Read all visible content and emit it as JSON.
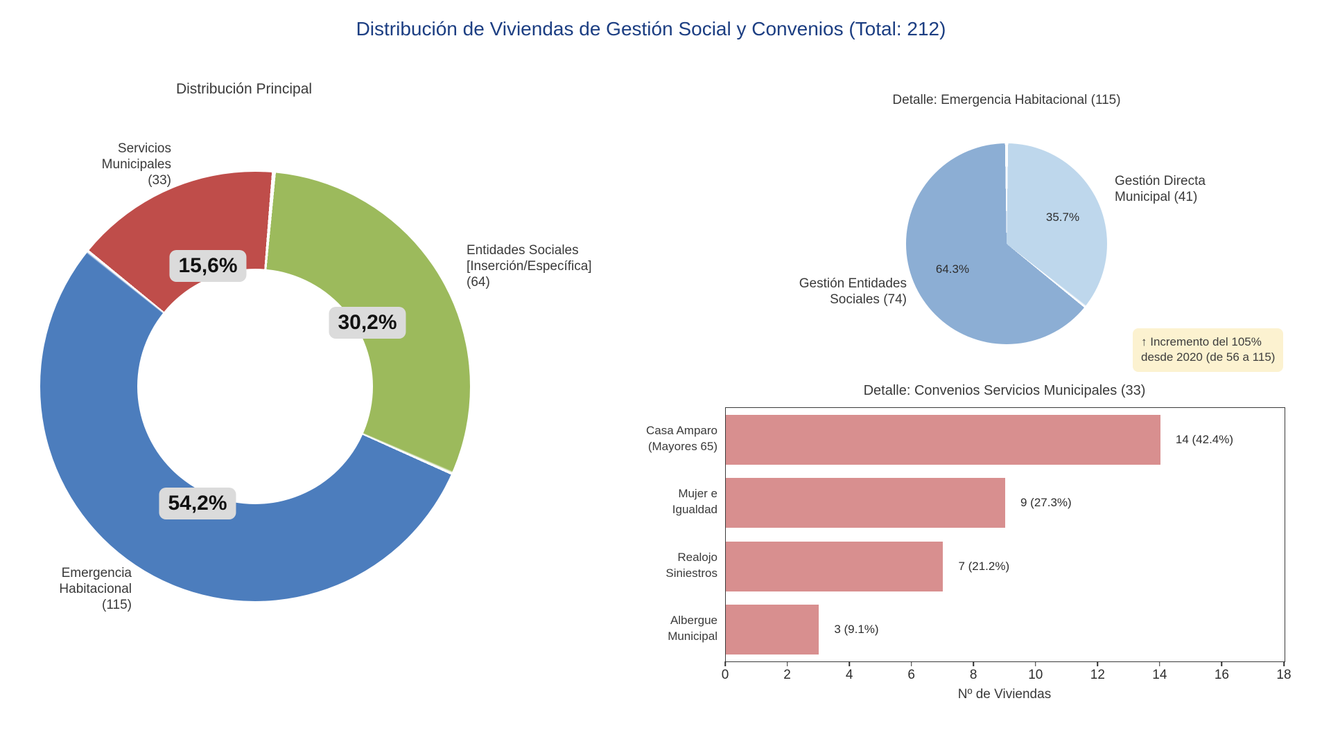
{
  "page_title": "Distribución de Viviendas de Gestión Social y Convenios (Total: 212)",
  "total": 212,
  "colors": {
    "title_blue": "#1c3e82",
    "donut_green": "#9cba5c",
    "donut_blue": "#4c7dbd",
    "donut_red": "#bf4d4a",
    "pie_light_blue": "#bed7ec",
    "pie_blue": "#8caed4",
    "bar_salmon": "#d88f8f",
    "pct_pill_bg": "#dbdbdb",
    "annotation_bg": "#fcf2d0"
  },
  "chart_data": [
    {
      "id": "distribucion-principal",
      "type": "pie",
      "donut": true,
      "title": "Distribución Principal",
      "start_angle_deg": 5,
      "slices": [
        {
          "name": "entidades-sociales",
          "label": "Entidades Sociales\n[Inserción/Específica]\n(64)",
          "count": 64,
          "pct": 30.2,
          "pct_label": "30,2%",
          "color": "#9cba5c"
        },
        {
          "name": "emergencia-habitacional",
          "label": "Emergencia\nHabitacional\n(115)",
          "count": 115,
          "pct": 54.2,
          "pct_label": "54,2%",
          "color": "#4c7dbd"
        },
        {
          "name": "servicios-municipales",
          "label": "Servicios\nMunicipales\n(33)",
          "count": 33,
          "pct": 15.6,
          "pct_label": "15,6%",
          "color": "#bf4d4a"
        }
      ]
    },
    {
      "id": "detalle-emergencia",
      "type": "pie",
      "donut": false,
      "title": "Detalle: Emergencia Habitacional (115)",
      "start_angle_deg": 0,
      "slices": [
        {
          "name": "gestion-directa-municipal",
          "label": "Gestión Directa\nMunicipal (41)",
          "count": 41,
          "pct": 35.7,
          "pct_label": "35.7%",
          "color": "#bed7ec"
        },
        {
          "name": "gestion-entidades-sociales",
          "label": "Gestión Entidades\nSociales (74)",
          "count": 74,
          "pct": 64.3,
          "pct_label": "64.3%",
          "color": "#8caed4"
        }
      ],
      "annotation": "↑ Incremento del 105%\ndesde 2020 (de 56 a 115)"
    },
    {
      "id": "detalle-convenios",
      "type": "bar",
      "title": "Detalle: Convenios Servicios Municipales (33)",
      "categories": [
        "Casa Amparo\n(Mayores 65)",
        "Mujer e\nIgualdad",
        "Realojo\nSiniestros",
        "Albergue\nMunicipal"
      ],
      "values": [
        14,
        9,
        7,
        3
      ],
      "value_labels": [
        "14 (42.4%)",
        "9 (27.3%)",
        "7 (21.2%)",
        "3 (9.1%)"
      ],
      "xlabel": "Nº de Viviendas",
      "xlim": [
        0,
        18
      ],
      "xticks": [
        0,
        2,
        4,
        6,
        8,
        10,
        12,
        14,
        16,
        18
      ],
      "bar_color": "#d88f8f"
    }
  ]
}
